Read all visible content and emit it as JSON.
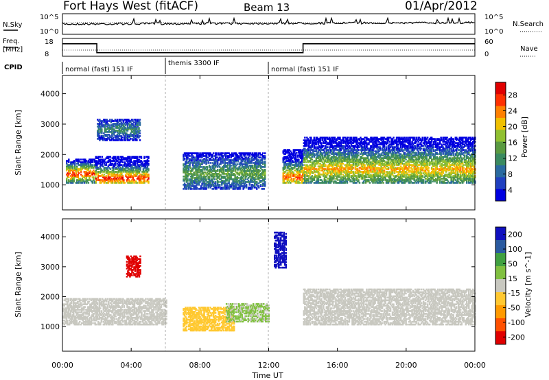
{
  "header": {
    "station": "Fort Hays West (fitACF)",
    "beam": "Beam 13",
    "date": "01/Apr/2012"
  },
  "noise_panel": {
    "left_label": "N.Sky",
    "left_ticks": [
      "10^5",
      "10^0"
    ],
    "right_ticks": [
      "10^5",
      "10^0"
    ],
    "right_label": "N.Search"
  },
  "freq_panel": {
    "left_label_1": "Freq.",
    "left_label_2": "[MHz]",
    "left_ticks": [
      "18",
      "8"
    ],
    "right_ticks": [
      "60",
      "0"
    ],
    "right_label": "Nave"
  },
  "cpid_panel": {
    "label": "CPID",
    "segments": [
      {
        "label": "normal (fast) 151 IF",
        "start_hour": 0,
        "end_hour": 6
      },
      {
        "label": "themis 3300 IF",
        "start_hour": 6,
        "end_hour": 12
      },
      {
        "label": "normal (fast) 151 IF",
        "start_hour": 12,
        "end_hour": 24
      }
    ]
  },
  "power_panel": {
    "ylabel": "Slant Range [km]",
    "yticks": [
      "1000",
      "2000",
      "3000",
      "4000"
    ],
    "colorbar_label": "Power [dB]",
    "colorbar_ticks": [
      "28",
      "24",
      "20",
      "16",
      "12",
      "8",
      "4"
    ]
  },
  "velocity_panel": {
    "ylabel": "Slant Range [km]",
    "yticks": [
      "1000",
      "2000",
      "3000",
      "4000"
    ],
    "colorbar_label": "Velocity [m s^-1]",
    "colorbar_ticks": [
      "200",
      "100",
      "50",
      "15",
      "-15",
      "-50",
      "-100",
      "-200"
    ]
  },
  "x_axis": {
    "label": "Time UT",
    "ticks": [
      "00:00",
      "04:00",
      "08:00",
      "12:00",
      "16:00",
      "20:00",
      "00:00"
    ]
  },
  "chart_data": {
    "type": "heatmap",
    "title": "Fort Hays West (fitACF) Beam 13 01/Apr/2012",
    "xlabel": "Time UT",
    "ylabel": "Slant Range [km]",
    "xlim_hours": [
      0,
      24
    ],
    "ylim_km": [
      180,
      4600
    ],
    "series": [
      {
        "name": "Power [dB]",
        "colorbar_range": [
          0,
          30
        ],
        "bands": [
          {
            "start_h": 0.2,
            "end_h": 1.9,
            "range_start_km": 1100,
            "range_end_km": 1900,
            "peak_km": 1400,
            "peak_db": 28
          },
          {
            "start_h": 1.9,
            "end_h": 5.0,
            "range_start_km": 1100,
            "range_end_km": 2000,
            "peak_km": 1250,
            "peak_db": 28
          },
          {
            "start_h": 2.0,
            "end_h": 4.5,
            "range_start_km": 2500,
            "range_end_km": 3200,
            "peak_km": 2850,
            "peak_db": 10
          },
          {
            "start_h": 7.0,
            "end_h": 11.8,
            "range_start_km": 900,
            "range_end_km": 2100,
            "peak_km": 1400,
            "peak_db": 14
          },
          {
            "start_h": 12.8,
            "end_h": 14.0,
            "range_start_km": 1100,
            "range_end_km": 2200,
            "peak_km": 1300,
            "peak_db": 26
          },
          {
            "start_h": 14.0,
            "end_h": 24.0,
            "range_start_km": 1100,
            "range_end_km": 2600,
            "peak_km": 1550,
            "peak_db": 22
          }
        ]
      },
      {
        "name": "Velocity [m/s]",
        "colorbar_range": [
          -200,
          200
        ],
        "bands": [
          {
            "start_h": 0.0,
            "end_h": 6.0,
            "range_start_km": 1100,
            "range_end_km": 2000,
            "velocity": 0
          },
          {
            "start_h": 3.7,
            "end_h": 4.5,
            "range_start_km": 2700,
            "range_end_km": 3400,
            "velocity": -220
          },
          {
            "start_h": 7.0,
            "end_h": 10.0,
            "range_start_km": 900,
            "range_end_km": 1700,
            "velocity": -60
          },
          {
            "start_h": 9.5,
            "end_h": 12.0,
            "range_start_km": 1200,
            "range_end_km": 1800,
            "velocity": 30
          },
          {
            "start_h": 12.3,
            "end_h": 13.0,
            "range_start_km": 3000,
            "range_end_km": 4200,
            "velocity": 200
          },
          {
            "start_h": 14.0,
            "end_h": 24.0,
            "range_start_km": 1100,
            "range_end_km": 2300,
            "velocity": 0
          }
        ]
      }
    ],
    "frequency_mhz": [
      {
        "start_h": 0,
        "end_h": 2,
        "value": 15
      },
      {
        "start_h": 2,
        "end_h": 14,
        "value": 10
      },
      {
        "start_h": 14,
        "end_h": 24,
        "value": 15
      }
    ]
  },
  "colors": {
    "power_scale": [
      "#0000e0",
      "#2040c0",
      "#2a6aa0",
      "#3a8a60",
      "#5a9a40",
      "#90c030",
      "#f0c000",
      "#ff8000",
      "#ff3000",
      "#e00000"
    ],
    "velocity_scale": [
      "#e00000",
      "#ff5000",
      "#ff9a00",
      "#ffc830",
      "#c8c8c0",
      "#80c040",
      "#40a040",
      "#2a5aa0",
      "#1010c0"
    ]
  }
}
